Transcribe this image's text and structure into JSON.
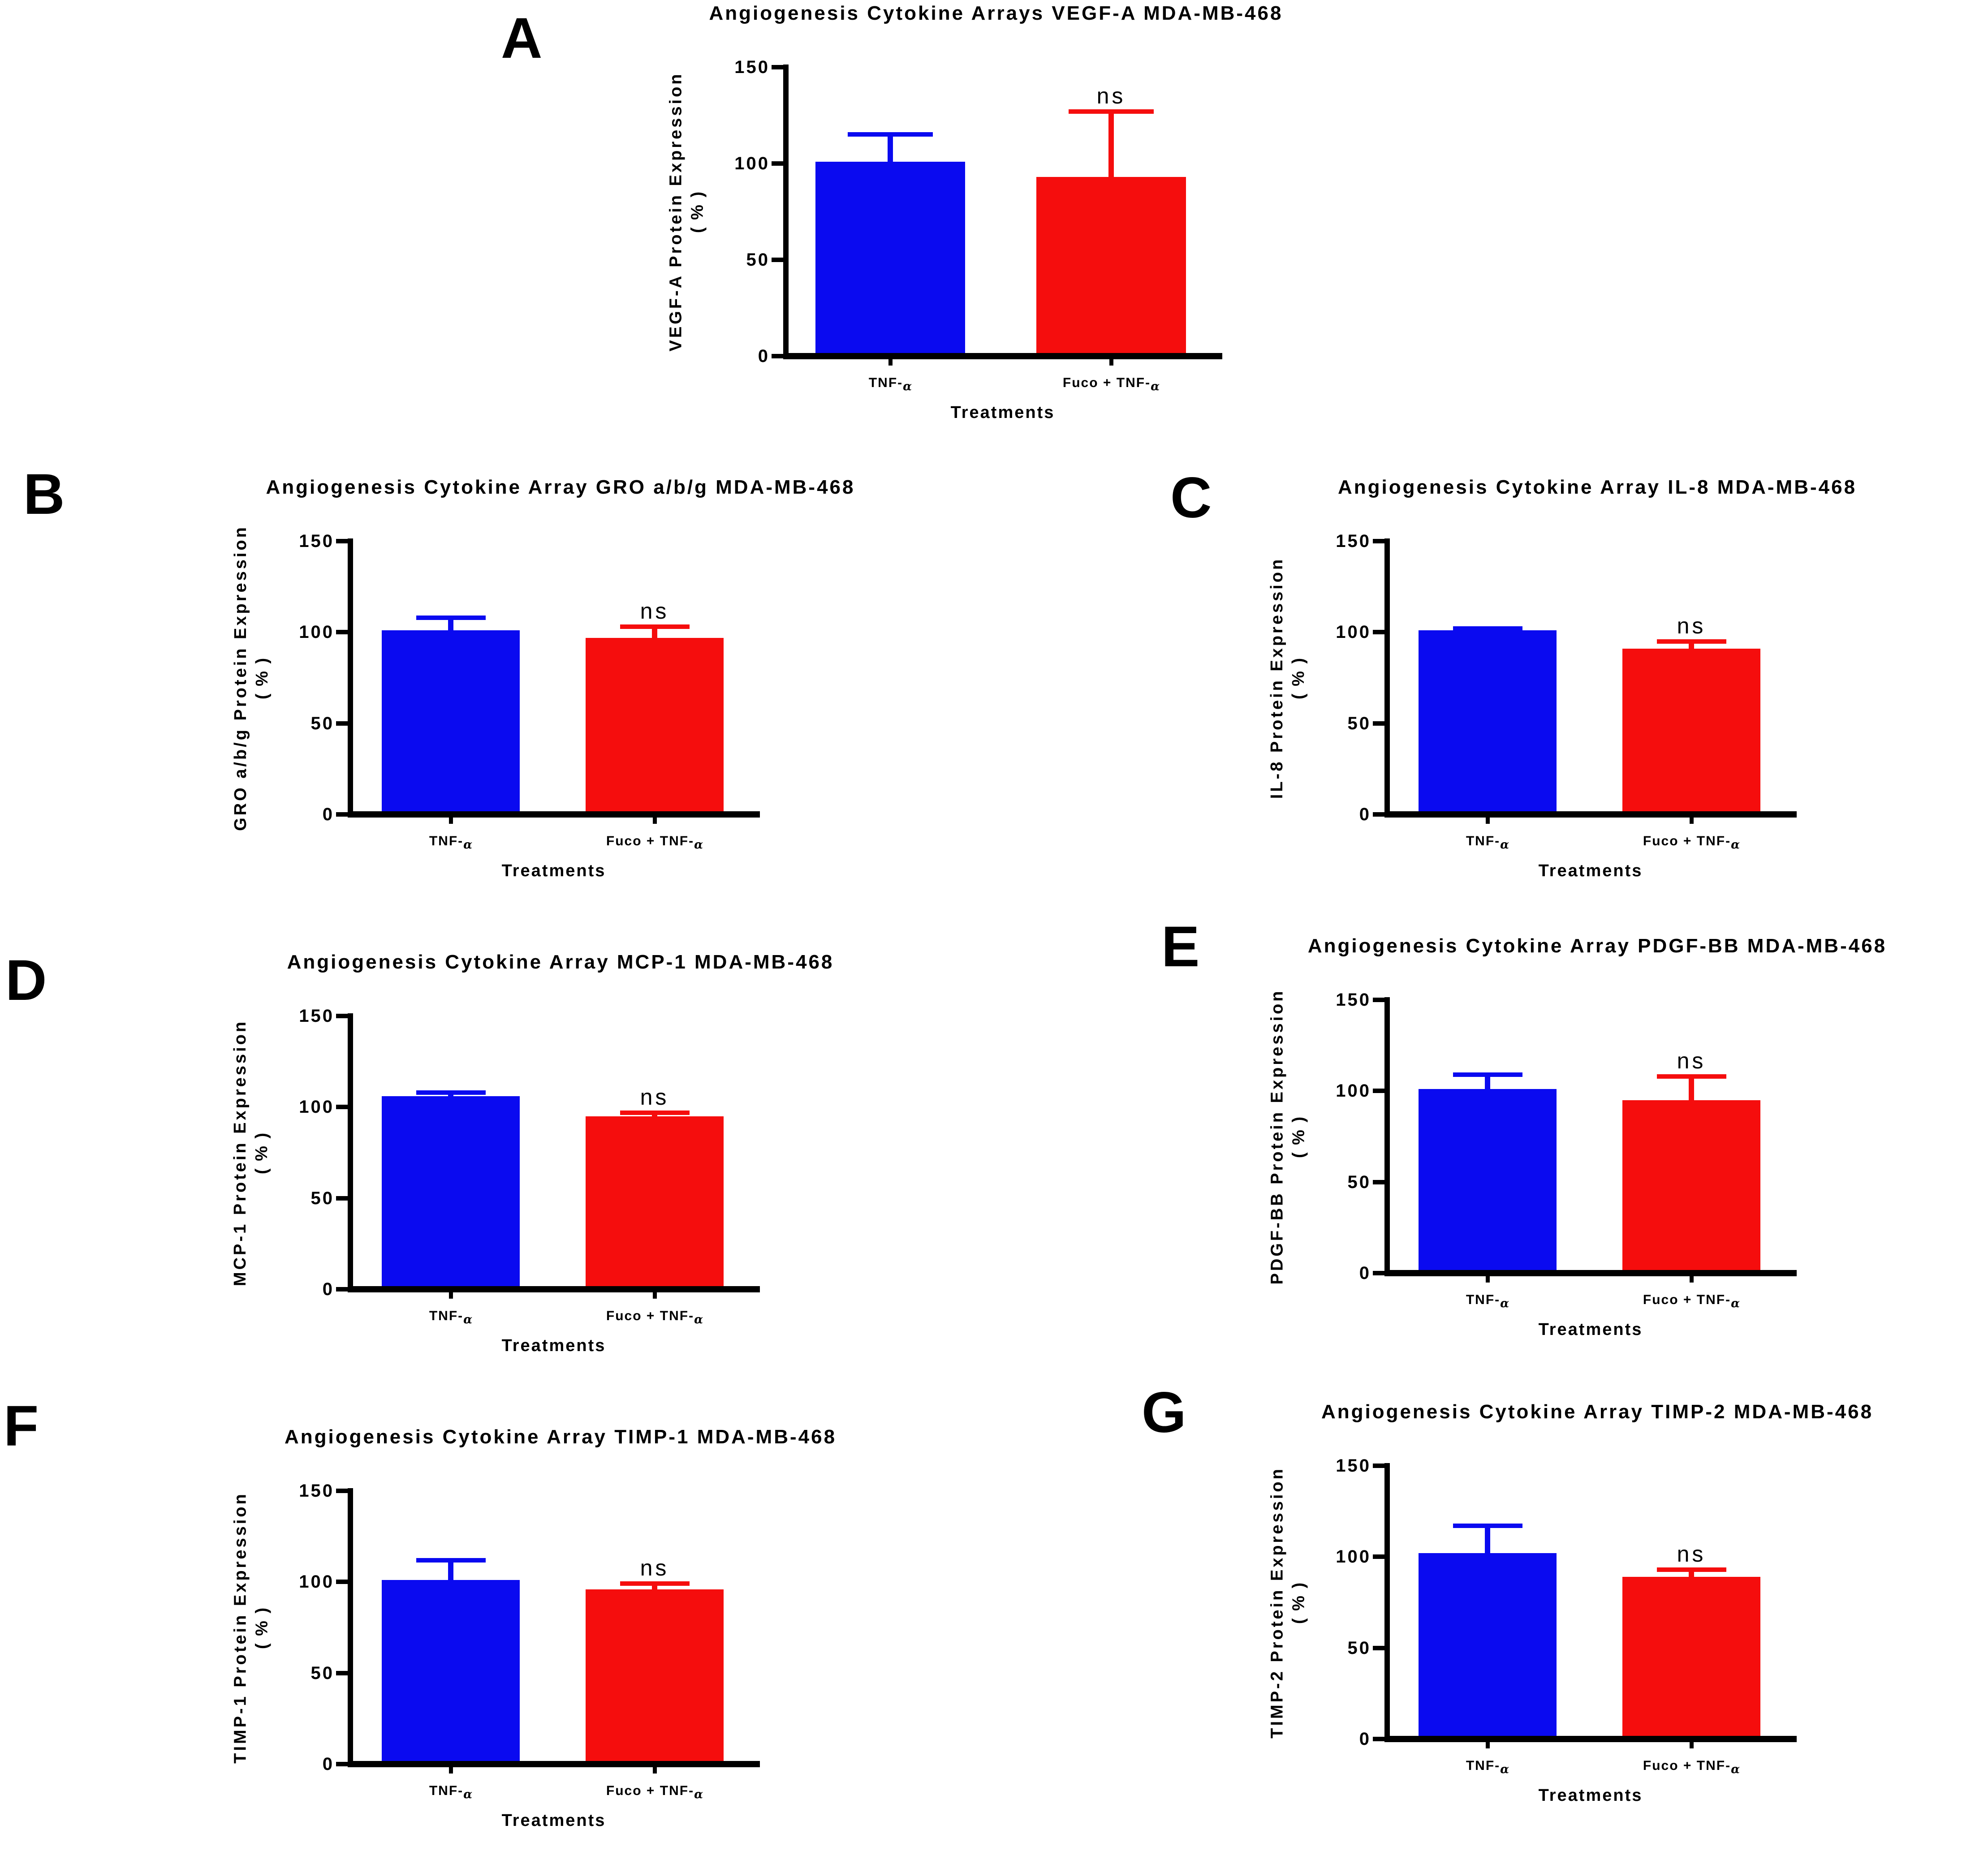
{
  "figure": {
    "background": "#ffffff",
    "significance_label": "ns",
    "treatment_blue": "TNF-α",
    "treatment_red": "Fuco + TNF-α"
  },
  "chart_data": [
    {
      "panel": "A",
      "type": "bar",
      "title": "Angiogenesis Cytokine Arrays VEGF-A MDA-MB-468",
      "ylabel": "VEGF-A Protein Expression",
      "ylabel_unit": "( % )",
      "xlabel": "Treatments",
      "categories": [
        "TNF-α",
        "Fuco + TNF-α"
      ],
      "values": [
        101,
        93
      ],
      "error_top": [
        115,
        127
      ],
      "bar_colors": [
        "#0a0af0",
        "#f50d0d"
      ],
      "ylim": [
        0,
        150
      ],
      "yticks": [
        0,
        50,
        100,
        150
      ],
      "annotation": {
        "text": "ns",
        "on": "Fuco + TNF-α"
      }
    },
    {
      "panel": "B",
      "type": "bar",
      "title": "Angiogenesis Cytokine Array GRO a/b/g MDA-MB-468",
      "ylabel": "GRO a/b/g Protein Expression",
      "ylabel_unit": "( % )",
      "xlabel": "Treatments",
      "categories": [
        "TNF-α",
        "Fuco + TNF-α"
      ],
      "values": [
        101,
        97
      ],
      "error_top": [
        108,
        103
      ],
      "bar_colors": [
        "#0a0af0",
        "#f50d0d"
      ],
      "ylim": [
        0,
        150
      ],
      "yticks": [
        0,
        50,
        100,
        150
      ],
      "annotation": {
        "text": "ns",
        "on": "Fuco + TNF-α"
      }
    },
    {
      "panel": "C",
      "type": "bar",
      "title": "Angiogenesis Cytokine Array IL-8 MDA-MB-468",
      "ylabel": "IL-8 Protein Expression",
      "ylabel_unit": "( % )",
      "xlabel": "Treatments",
      "categories": [
        "TNF-α",
        "Fuco + TNF-α"
      ],
      "values": [
        101,
        91
      ],
      "error_top": [
        102,
        95
      ],
      "bar_colors": [
        "#0a0af0",
        "#f50d0d"
      ],
      "ylim": [
        0,
        150
      ],
      "yticks": [
        0,
        50,
        100,
        150
      ],
      "annotation": {
        "text": "ns",
        "on": "Fuco + TNF-α"
      }
    },
    {
      "panel": "D",
      "type": "bar",
      "title": "Angiogenesis Cytokine Array MCP-1 MDA-MB-468",
      "ylabel": "MCP-1 Protein Expression",
      "ylabel_unit": "( % )",
      "xlabel": "Treatments",
      "categories": [
        "TNF-α",
        "Fuco + TNF-α"
      ],
      "values": [
        106,
        95
      ],
      "error_top": [
        108,
        97
      ],
      "bar_colors": [
        "#0a0af0",
        "#f50d0d"
      ],
      "ylim": [
        0,
        150
      ],
      "yticks": [
        0,
        50,
        100,
        150
      ],
      "annotation": {
        "text": "ns",
        "on": "Fuco + TNF-α"
      }
    },
    {
      "panel": "E",
      "type": "bar",
      "title": "Angiogenesis Cytokine Array PDGF-BB MDA-MB-468",
      "ylabel": "PDGF-BB Protein Expression",
      "ylabel_unit": "( % )",
      "xlabel": "Treatments",
      "categories": [
        "TNF-α",
        "Fuco + TNF-α"
      ],
      "values": [
        101,
        95
      ],
      "error_top": [
        109,
        108
      ],
      "bar_colors": [
        "#0a0af0",
        "#f50d0d"
      ],
      "ylim": [
        0,
        150
      ],
      "yticks": [
        0,
        50,
        100,
        150
      ],
      "annotation": {
        "text": "ns",
        "on": "Fuco + TNF-α"
      }
    },
    {
      "panel": "F",
      "type": "bar",
      "title": "Angiogenesis Cytokine Array TIMP-1 MDA-MB-468",
      "ylabel": "TIMP-1 Protein Expression",
      "ylabel_unit": "( % )",
      "xlabel": "Treatments",
      "categories": [
        "TNF-α",
        "Fuco + TNF-α"
      ],
      "values": [
        101,
        96
      ],
      "error_top": [
        112,
        99
      ],
      "bar_colors": [
        "#0a0af0",
        "#f50d0d"
      ],
      "ylim": [
        0,
        150
      ],
      "yticks": [
        0,
        50,
        100,
        150
      ],
      "annotation": {
        "text": "ns",
        "on": "Fuco + TNF-α"
      }
    },
    {
      "panel": "G",
      "type": "bar",
      "title": "Angiogenesis Cytokine Array TIMP-2 MDA-MB-468",
      "ylabel": "TIMP-2 Protein Expression",
      "ylabel_unit": "( % )",
      "xlabel": "Treatments",
      "categories": [
        "TNF-α",
        "Fuco + TNF-α"
      ],
      "values": [
        102,
        89
      ],
      "error_top": [
        117,
        93
      ],
      "bar_colors": [
        "#0a0af0",
        "#f50d0d"
      ],
      "ylim": [
        0,
        150
      ],
      "yticks": [
        0,
        50,
        100,
        150
      ],
      "annotation": {
        "text": "ns",
        "on": "Fuco + TNF-α"
      }
    }
  ]
}
